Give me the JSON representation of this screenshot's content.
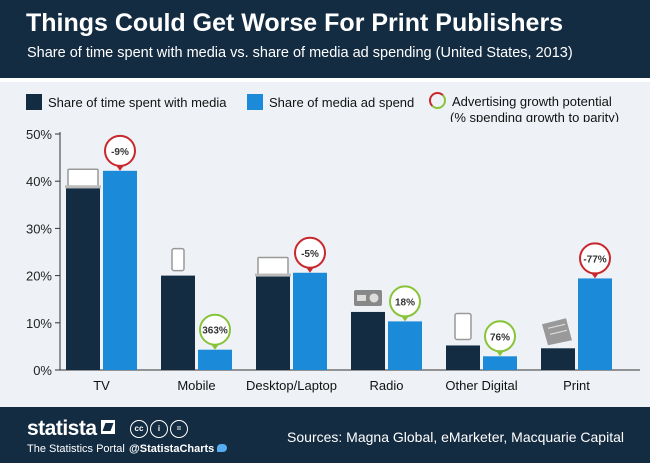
{
  "header": {
    "title": "Things Could Get Worse For Print Publishers",
    "subtitle": "Share of time spent with media vs. share of media ad spending (United States, 2013)"
  },
  "legend": {
    "time": "Share of time spent with media",
    "ad": "Share of media ad spend",
    "potential_line1": "Advertising growth potential",
    "potential_line2": "(% spending growth to parity)"
  },
  "colors": {
    "time": "#142c42",
    "ad": "#1a8ad9",
    "negative": "#c8282d",
    "positive": "#88c43a",
    "background": "#eef2f6"
  },
  "chart_data": {
    "type": "bar",
    "title": "Things Could Get Worse For Print Publishers",
    "ylim": [
      0,
      50
    ],
    "yticks": [
      "0%",
      "10%",
      "20%",
      "30%",
      "40%",
      "50%"
    ],
    "categories": [
      "TV",
      "Mobile",
      "Desktop/Laptop",
      "Radio",
      "Other Digital",
      "Print"
    ],
    "series": [
      {
        "name": "Share of time spent with media",
        "values": [
          38.5,
          20,
          19.8,
          12.3,
          5.2,
          4.6
        ]
      },
      {
        "name": "Share of media ad spend",
        "values": [
          42.2,
          4.3,
          20.6,
          10.3,
          2.9,
          19.4
        ]
      }
    ],
    "growth_potential": [
      "-9%",
      "363%",
      "-5%",
      "18%",
      "76%",
      "-77%"
    ],
    "grid": false,
    "legend_position": "top"
  },
  "footer": {
    "brand": "statista",
    "tagline": "The Statistics Portal",
    "handle": "@StatistaCharts",
    "sources": "Sources: Magna Global, eMarketer, Macquarie Capital"
  }
}
